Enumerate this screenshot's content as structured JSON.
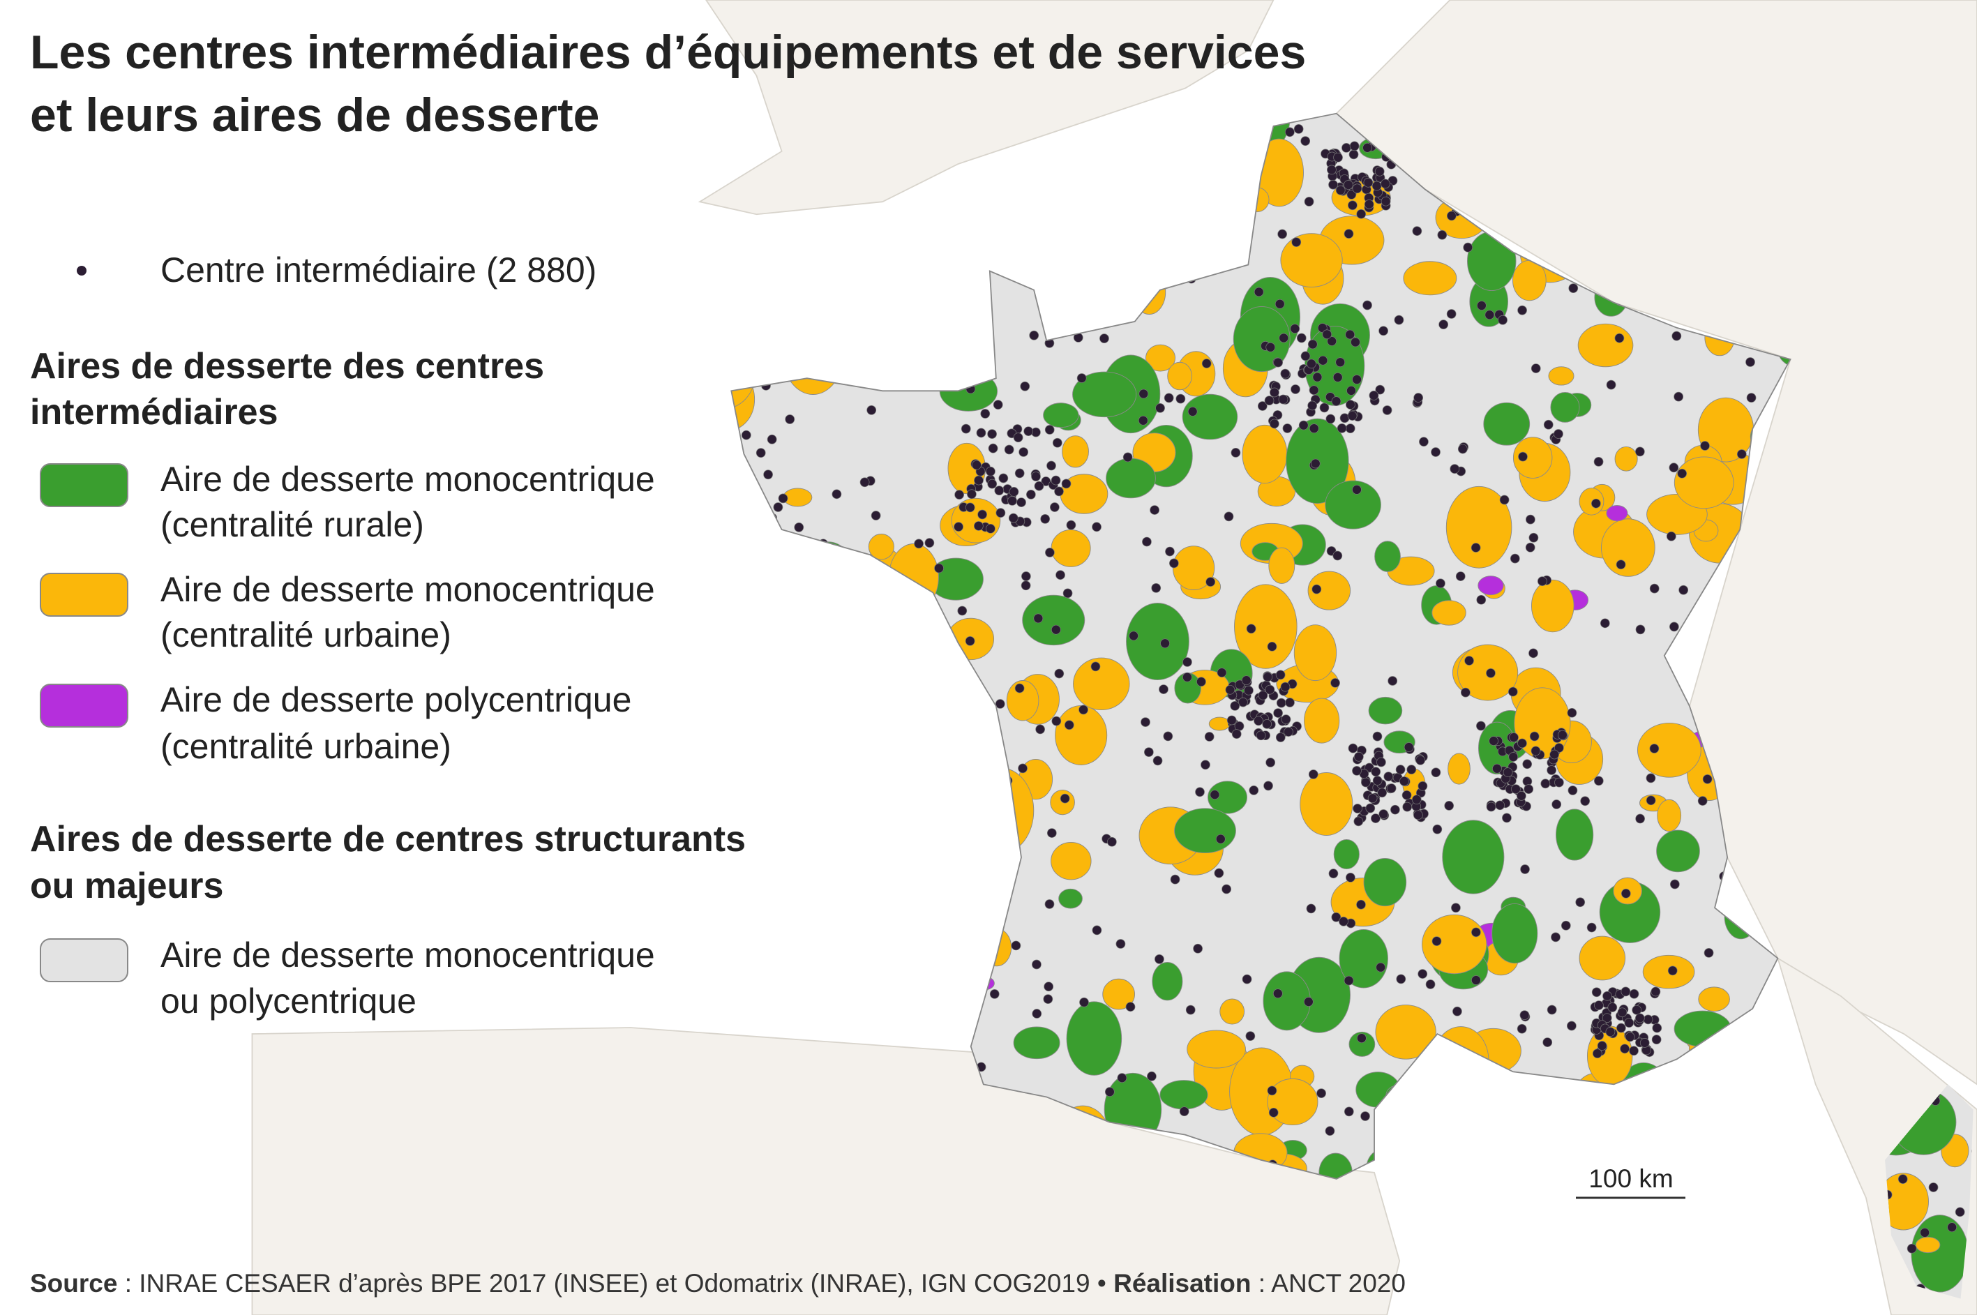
{
  "header": {
    "title_lines": [
      "Les centres intermédiaires d’équipements et de services",
      "et leurs aires de desserte"
    ]
  },
  "legend": {
    "point_item": "Centre intermédiaire (2 880)",
    "section_1": {
      "title_lines": [
        "Aires de desserte des centres",
        "intermédiaires"
      ],
      "items": [
        {
          "lines": [
            "Aire de desserte monocentrique",
            "(centralité rurale)"
          ]
        },
        {
          "lines": [
            "Aire de desserte monocentrique",
            "(centralité urbaine)"
          ]
        },
        {
          "lines": [
            "Aire de desserte polycentrique",
            "(centralité urbaine)"
          ]
        }
      ]
    },
    "section_2": {
      "title_lines": [
        "Aires de desserte de centres structurants",
        "ou majeurs"
      ],
      "items": [
        {
          "lines": [
            "Aire de desserte monocentrique",
            "ou polycentrique"
          ]
        }
      ]
    }
  },
  "scale_bar": "100 km",
  "footer": {
    "source_label": "Source",
    "source_text": " : INRAE CESAER d’après BPE 2017 (INSEE) et Odomatrix (INRAE), IGN COG2019 • ",
    "credit_label": "Réalisation",
    "credit_text": " : ANCT 2020"
  }
}
